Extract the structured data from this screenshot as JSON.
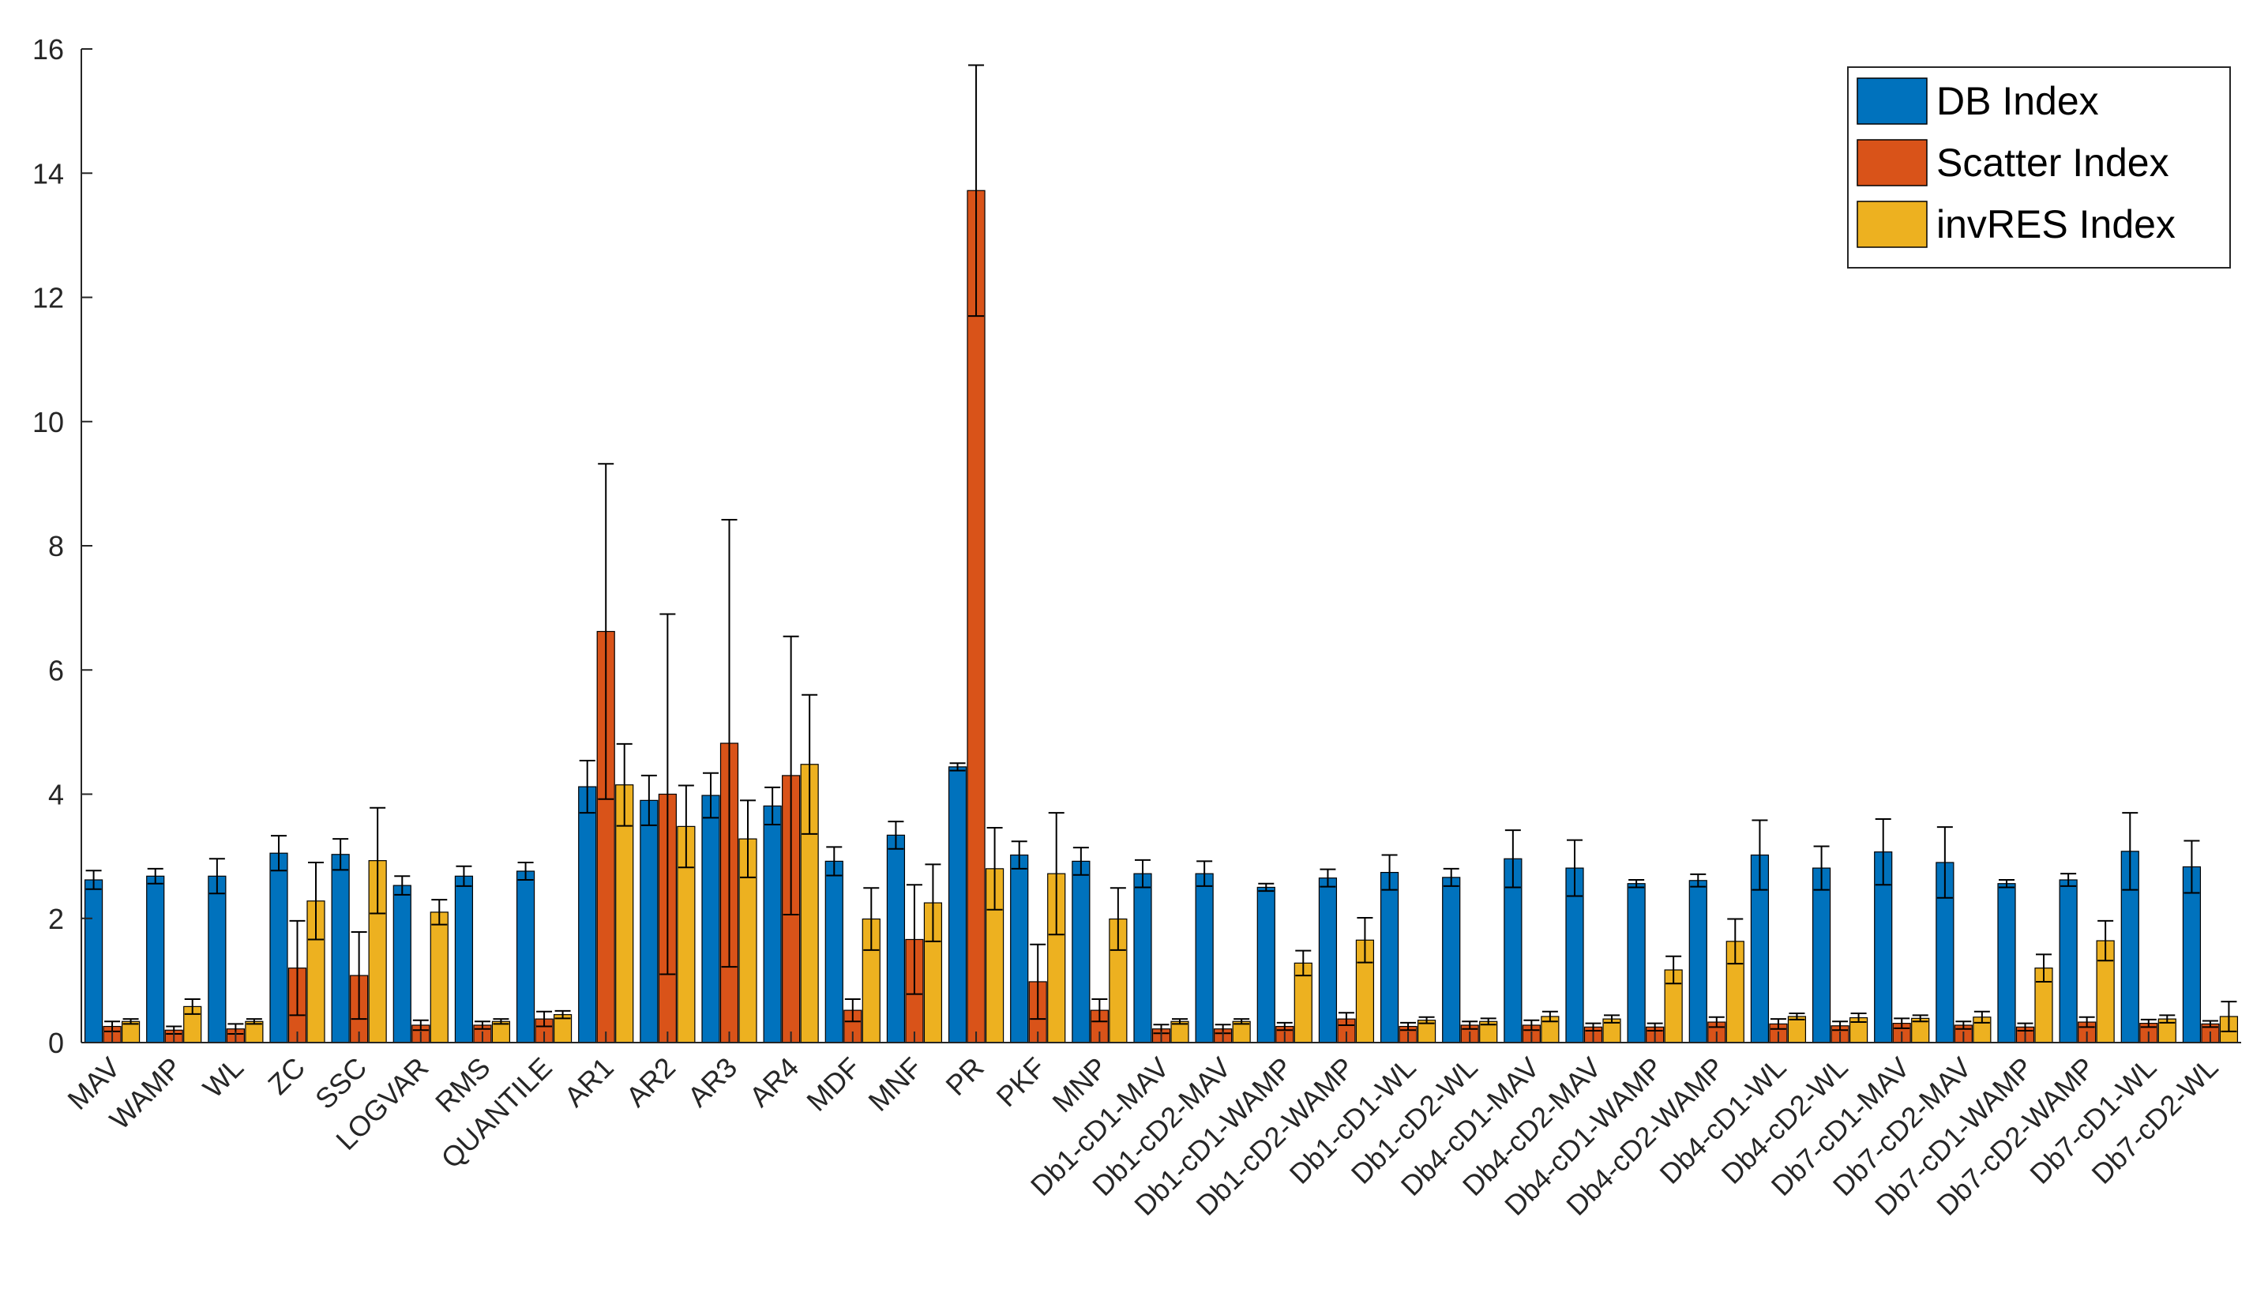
{
  "chart_data": {
    "type": "bar",
    "title": "",
    "xlabel": "",
    "ylabel": "",
    "ylim": [
      0,
      16
    ],
    "yticks": [
      0,
      2,
      4,
      6,
      8,
      10,
      12,
      14,
      16
    ],
    "grid": false,
    "legend_position": "top-right",
    "categories": [
      "MAV",
      "WAMP",
      "WL",
      "ZC",
      "SSC",
      "LOGVAR",
      "RMS",
      "QUANTILE",
      "AR1",
      "AR2",
      "AR3",
      "AR4",
      "MDF",
      "MNF",
      "PR",
      "PKF",
      "MNP",
      "Db1-cD1-MAV",
      "Db1-cD2-MAV",
      "Db1-cD1-WAMP",
      "Db1-cD2-WAMP",
      "Db1-cD1-WL",
      "Db1-cD2-WL",
      "Db4-cD1-MAV",
      "Db4-cD2-MAV",
      "Db4-cD1-WAMP",
      "Db4-cD2-WAMP",
      "Db4-cD1-WL",
      "Db4-cD2-WL",
      "Db7-cD1-MAV",
      "Db7-cD2-MAV",
      "Db7-cD1-WAMP",
      "Db7-cD2-WAMP",
      "Db7-cD1-WL",
      "Db7-cD2-WL"
    ],
    "series": [
      {
        "name": "DB Index",
        "color": "#0072BD",
        "values": [
          2.62,
          2.68,
          2.68,
          3.05,
          3.03,
          2.53,
          2.68,
          2.76,
          4.12,
          3.9,
          3.98,
          3.81,
          2.92,
          3.34,
          4.44,
          3.02,
          2.92,
          2.72,
          2.72,
          2.5,
          2.65,
          2.74,
          2.66,
          2.96,
          2.81,
          2.56,
          2.61,
          3.02,
          2.81,
          3.07,
          2.9,
          2.56,
          2.62,
          3.08,
          2.83
        ],
        "errors": [
          0.15,
          0.12,
          0.28,
          0.28,
          0.25,
          0.15,
          0.16,
          0.14,
          0.42,
          0.4,
          0.36,
          0.3,
          0.23,
          0.22,
          0.06,
          0.22,
          0.22,
          0.22,
          0.2,
          0.06,
          0.14,
          0.28,
          0.14,
          0.46,
          0.45,
          0.06,
          0.1,
          0.56,
          0.35,
          0.53,
          0.57,
          0.06,
          0.1,
          0.62,
          0.42
        ]
      },
      {
        "name": "Scatter Index",
        "color": "#D95319",
        "values": [
          0.26,
          0.2,
          0.22,
          1.2,
          1.08,
          0.28,
          0.28,
          0.38,
          6.62,
          4.0,
          4.82,
          4.3,
          0.52,
          1.66,
          13.72,
          0.98,
          0.52,
          0.22,
          0.22,
          0.26,
          0.38,
          0.26,
          0.28,
          0.28,
          0.25,
          0.25,
          0.33,
          0.3,
          0.27,
          0.31,
          0.28,
          0.25,
          0.33,
          0.31,
          0.3
        ],
        "errors": [
          0.08,
          0.06,
          0.08,
          0.76,
          0.7,
          0.08,
          0.06,
          0.12,
          2.7,
          2.9,
          3.6,
          2.24,
          0.18,
          0.88,
          2.02,
          0.6,
          0.18,
          0.07,
          0.07,
          0.06,
          0.1,
          0.06,
          0.06,
          0.08,
          0.06,
          0.06,
          0.08,
          0.08,
          0.07,
          0.08,
          0.06,
          0.06,
          0.08,
          0.06,
          0.05
        ]
      },
      {
        "name": "invRES Index",
        "color": "#EDB120",
        "values": [
          0.34,
          0.58,
          0.34,
          2.28,
          2.93,
          2.1,
          0.34,
          0.45,
          4.15,
          3.48,
          3.28,
          4.48,
          1.99,
          2.25,
          2.8,
          2.72,
          1.99,
          0.34,
          0.34,
          1.28,
          1.65,
          0.36,
          0.34,
          0.42,
          0.38,
          1.17,
          1.63,
          0.42,
          0.4,
          0.39,
          0.41,
          1.2,
          1.64,
          0.38,
          0.42
        ],
        "errors": [
          0.04,
          0.12,
          0.04,
          0.62,
          0.85,
          0.2,
          0.04,
          0.06,
          0.66,
          0.66,
          0.62,
          1.12,
          0.5,
          0.62,
          0.66,
          0.98,
          0.5,
          0.04,
          0.04,
          0.2,
          0.36,
          0.05,
          0.05,
          0.08,
          0.06,
          0.22,
          0.36,
          0.05,
          0.07,
          0.05,
          0.09,
          0.22,
          0.32,
          0.06,
          0.24
        ]
      }
    ]
  }
}
